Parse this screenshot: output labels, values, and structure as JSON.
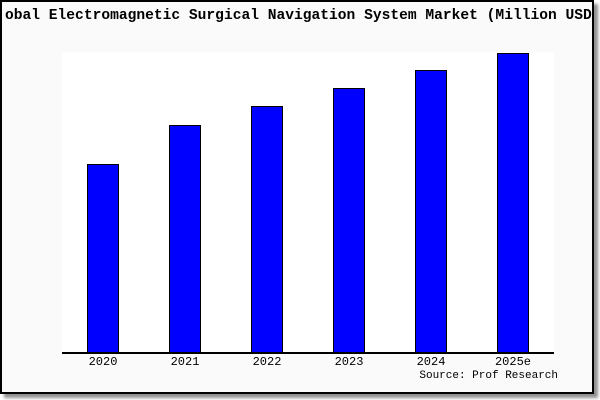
{
  "colors": {
    "bar_fill": "#0000FF",
    "bar_edge": "#000000",
    "panel_bg": "#FAFAFA",
    "plot_bg": "#FFFFFF",
    "frame": "#000000",
    "shadow": "#8F8F8F",
    "text": "#000000"
  },
  "chart_data": {
    "type": "bar",
    "title": "obal Electromagnetic Surgical Navigation System Market (Million USD",
    "categories": [
      "2020",
      "2021",
      "2022",
      "2023",
      "2024",
      "2025e"
    ],
    "values": [
      62.7,
      75.8,
      82.0,
      88.0,
      94.0,
      99.7
    ],
    "values_are_relative": true,
    "xlabel": "",
    "ylabel": "",
    "ylim": [
      0,
      100
    ],
    "y_axis_labels_shown": false,
    "grid": false,
    "legend": false,
    "bar_color": "#0000FF",
    "source": "Source: Prof Research"
  }
}
